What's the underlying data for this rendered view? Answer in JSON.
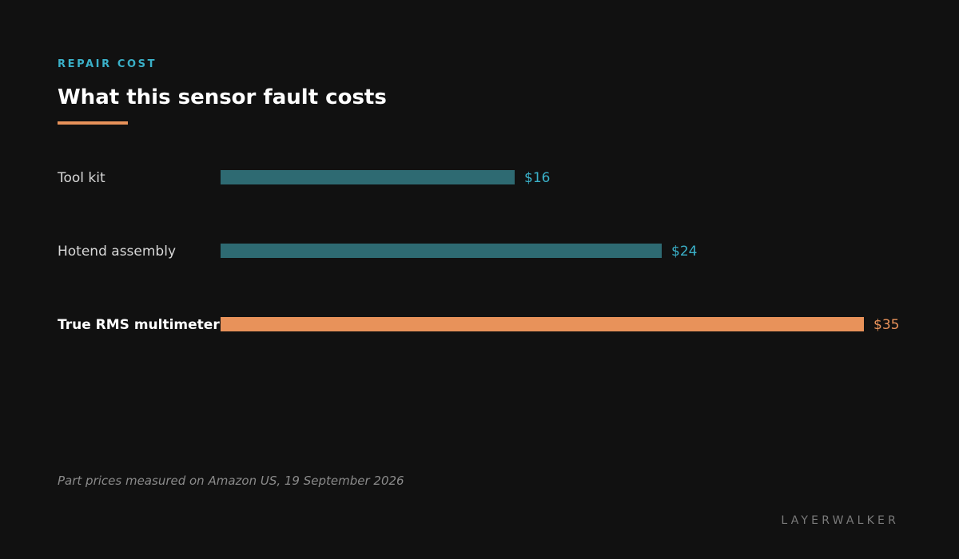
{
  "header": {
    "eyebrow": "REPAIR COST",
    "title": "What this sensor fault costs"
  },
  "chart_data": {
    "type": "bar",
    "orientation": "horizontal",
    "categories": [
      "Tool kit",
      "Hotend assembly",
      "True RMS multimeter"
    ],
    "values": [
      16,
      24,
      35
    ],
    "value_labels": [
      "$16",
      "$24",
      "$35"
    ],
    "highlight_index": 2,
    "xlim": [
      0,
      35
    ],
    "grid": false,
    "legend": "none",
    "colors": {
      "default": "#2e6a72",
      "highlight": "#e8925a",
      "default_label": "#3ab0c8",
      "highlight_label": "#e8925a"
    }
  },
  "footnote": "Part prices measured on Amazon US, 19 September 2026",
  "brand": "LAYERWALKER"
}
